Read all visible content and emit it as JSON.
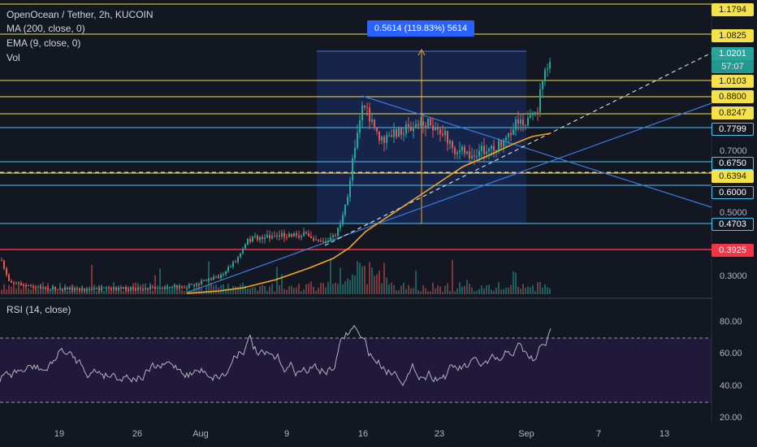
{
  "header": {
    "symbol": "OpenOcean / Tether, 2h, KUCOIN",
    "indicator_ma": "MA (200, close, 0)",
    "indicator_ema": "EMA (9, close, 0)",
    "indicator_vol": "Vol"
  },
  "rsi_pane": {
    "label": "RSI (14, close)"
  },
  "measure": {
    "text": "0.5614 (119.83%) 5614"
  },
  "price_labels": [
    {
      "text": "1.1794",
      "kind": "yellow"
    },
    {
      "text": "1.0825",
      "kind": "yellow"
    },
    {
      "text": "1.0201",
      "kind": "current"
    },
    {
      "text": "57:07",
      "kind": "current-sub"
    },
    {
      "text": "1.0103",
      "kind": "yellow"
    },
    {
      "text": "0.8800",
      "kind": "yellow"
    },
    {
      "text": "0.8247",
      "kind": "yellow"
    },
    {
      "text": "0.7799",
      "kind": "cyan"
    },
    {
      "text": "0.6750",
      "kind": "cyan"
    },
    {
      "text": "0.6394",
      "kind": "yellow"
    },
    {
      "text": "0.6000",
      "kind": "cyan"
    },
    {
      "text": "0.4703",
      "kind": "cyan"
    },
    {
      "text": "0.3925",
      "kind": "red"
    }
  ],
  "price_axis": [
    "0.7000",
    "0.5000",
    "0.3000"
  ],
  "rsi_axis": [
    "80.00",
    "60.00",
    "40.00",
    "20.00"
  ],
  "date_axis": [
    "19",
    "26",
    "Aug",
    "9",
    "16",
    "23",
    "Sep",
    "7",
    "13"
  ],
  "colors": {
    "background": "#131722",
    "yellow": "#f5e14a",
    "cyan": "#4fc3f7",
    "red": "#f23645",
    "up": "#26a69a",
    "down": "#ef5350",
    "ma": "#f5a623",
    "trend": "#2962ff",
    "rsi_band": "#2a1f4a"
  }
}
